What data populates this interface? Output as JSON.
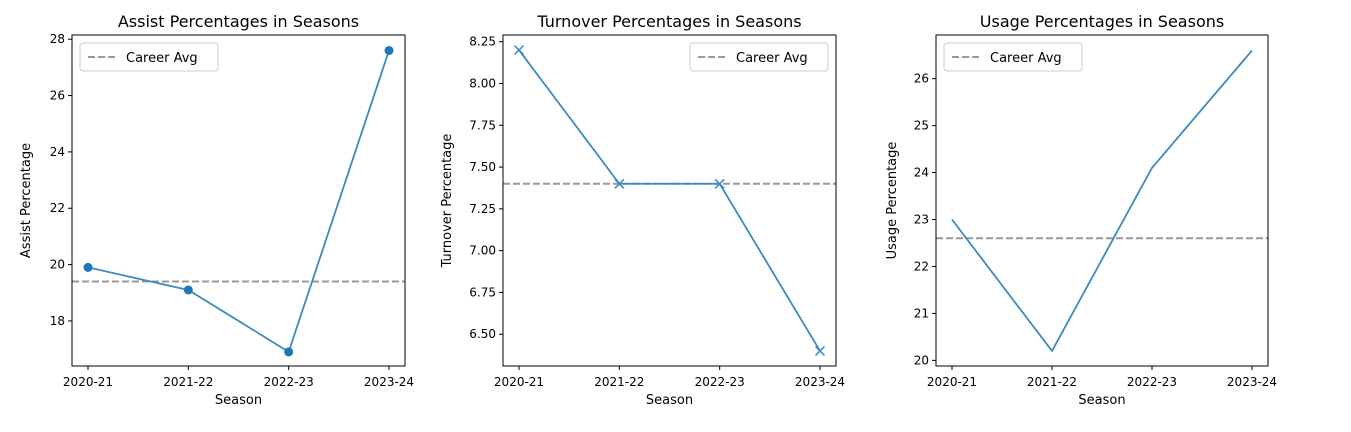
{
  "chart_data": [
    {
      "type": "line",
      "title": "Assist Percentages in Seasons",
      "xlabel": "Season",
      "ylabel": "Assist Percentage",
      "categories": [
        "2020-21",
        "2021-22",
        "2022-23",
        "2023-24"
      ],
      "values": [
        19.9,
        19.1,
        16.9,
        27.6
      ],
      "marker": "circle",
      "career_avg": 19.4,
      "legend": {
        "label": "Career Avg",
        "placement": "top-left"
      },
      "ylim": [
        16.4,
        28.15
      ],
      "yticks": [
        18,
        20,
        22,
        24,
        26,
        28
      ],
      "ytick_labels": [
        "18",
        "20",
        "22",
        "24",
        "26",
        "28"
      ],
      "grid": false
    },
    {
      "type": "line",
      "title": "Turnover Percentages in Seasons",
      "xlabel": "Season",
      "ylabel": "Turnover Percentage",
      "categories": [
        "2020-21",
        "2021-22",
        "2022-23",
        "2023-24"
      ],
      "values": [
        8.2,
        7.4,
        7.4,
        6.4
      ],
      "marker": "x",
      "career_avg": 7.4,
      "legend": {
        "label": "Career Avg",
        "placement": "top-right"
      },
      "ylim": [
        6.31,
        8.29
      ],
      "yticks": [
        6.5,
        6.75,
        7.0,
        7.25,
        7.5,
        7.75,
        8.0,
        8.25
      ],
      "ytick_labels": [
        "6.50",
        "6.75",
        "7.00",
        "7.25",
        "7.50",
        "7.75",
        "8.00",
        "8.25"
      ],
      "grid": false
    },
    {
      "type": "line",
      "title": "Usage Percentages in Seasons",
      "xlabel": "Season",
      "ylabel": "Usage Percentage",
      "categories": [
        "2020-21",
        "2021-22",
        "2022-23",
        "2023-24"
      ],
      "values": [
        23.0,
        20.2,
        24.1,
        26.6
      ],
      "marker": "none",
      "career_avg": 22.6,
      "legend": {
        "label": "Career Avg",
        "placement": "top-left"
      },
      "ylim": [
        19.88,
        26.93
      ],
      "yticks": [
        20,
        21,
        22,
        23,
        24,
        25,
        26
      ],
      "ytick_labels": [
        "20",
        "21",
        "22",
        "23",
        "24",
        "25",
        "26"
      ],
      "grid": false
    }
  ],
  "colors": {
    "line": "#3b8bc2",
    "marker": "#1f77b4",
    "avg_line": "#999999",
    "axes": "#000000"
  }
}
